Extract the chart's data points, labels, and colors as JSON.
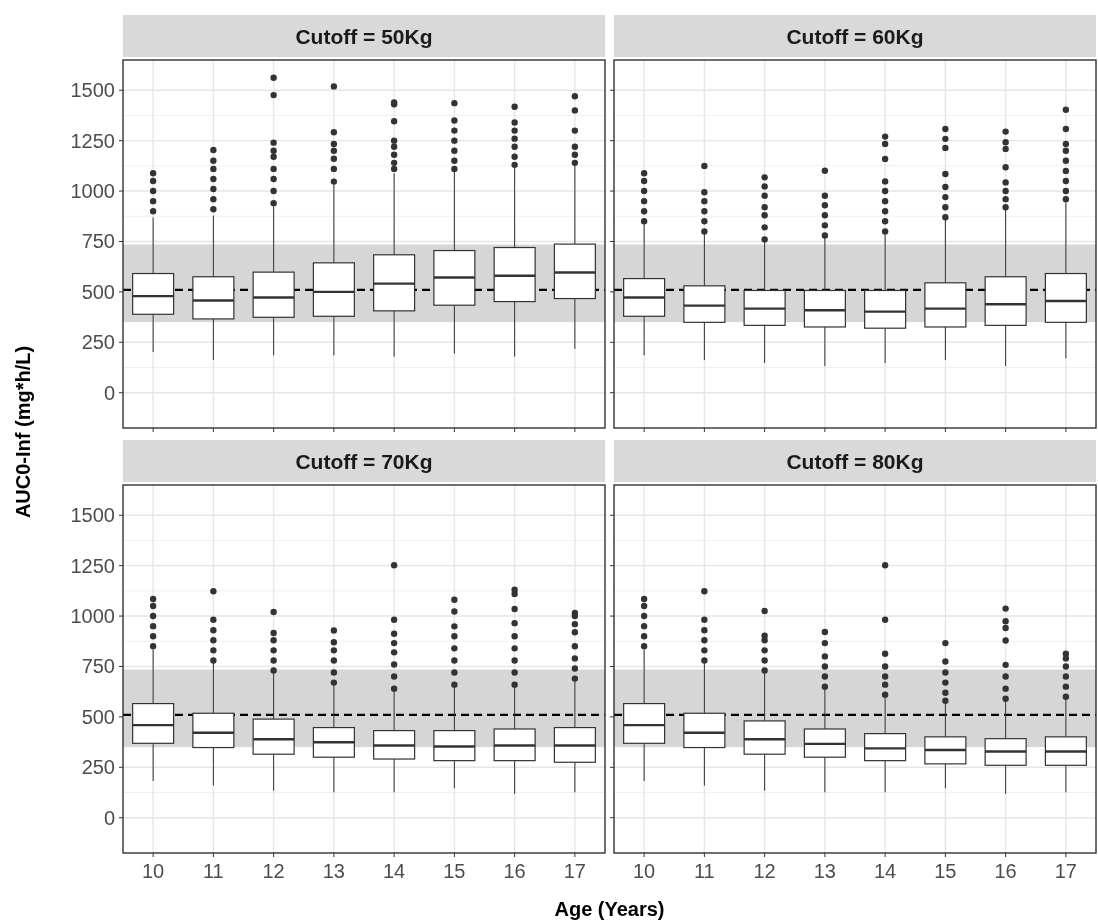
{
  "chart_data": [
    {
      "type": "box",
      "title": "Cutoff = 50Kg",
      "ylabel": "AUC0-Inf (mg*h/L)",
      "categories": [
        "10",
        "11",
        "12",
        "13",
        "14",
        "15",
        "16",
        "17"
      ],
      "ylim": [
        -175,
        1650
      ],
      "yticks": [
        0,
        250,
        500,
        750,
        1000,
        1250,
        1500
      ],
      "grid": true,
      "tick_labels": "y",
      "color": "#333333",
      "ref_lines": [
        {
          "axis": "y",
          "value": 510,
          "line_style": "dashed",
          "color": "#000000"
        }
      ],
      "bands": [
        {
          "axis": "y",
          "from": 350,
          "to": 735,
          "color": "#d6d6d6"
        }
      ],
      "boxes": [
        {
          "low": 202,
          "q1": 389,
          "median": 479,
          "q3": 591,
          "high": 869,
          "outliers": [
            900,
            950,
            1000,
            1050,
            1088
          ]
        },
        {
          "low": 162,
          "q1": 366,
          "median": 457,
          "q3": 575,
          "high": 878,
          "outliers": [
            910,
            960,
            1010,
            1060,
            1110,
            1150,
            1204
          ]
        },
        {
          "low": 185,
          "q1": 374,
          "median": 472,
          "q3": 598,
          "high": 924,
          "outliers": [
            940,
            1000,
            1060,
            1110,
            1170,
            1200,
            1240,
            1476,
            1562
          ]
        },
        {
          "low": 185,
          "q1": 379,
          "median": 500,
          "q3": 644,
          "high": 1032,
          "outliers": [
            1047,
            1110,
            1160,
            1200,
            1234,
            1292,
            1519
          ]
        },
        {
          "low": 179,
          "q1": 406,
          "median": 541,
          "q3": 684,
          "high": 1088,
          "outliers": [
            1110,
            1140,
            1180,
            1220,
            1250,
            1346,
            1430,
            1440
          ]
        },
        {
          "low": 194,
          "q1": 434,
          "median": 571,
          "q3": 705,
          "high": 1101,
          "outliers": [
            1110,
            1150,
            1200,
            1250,
            1300,
            1350,
            1436
          ]
        },
        {
          "low": 179,
          "q1": 452,
          "median": 580,
          "q3": 720,
          "high": 1118,
          "outliers": [
            1130,
            1170,
            1220,
            1260,
            1300,
            1340,
            1418
          ]
        },
        {
          "low": 217,
          "q1": 467,
          "median": 596,
          "q3": 737,
          "high": 1126,
          "outliers": [
            1140,
            1180,
            1220,
            1300,
            1400,
            1470
          ]
        }
      ]
    },
    {
      "type": "box",
      "title": "Cutoff = 60Kg",
      "categories": [
        "10",
        "11",
        "12",
        "13",
        "14",
        "15",
        "16",
        "17"
      ],
      "ylim": [
        -175,
        1650
      ],
      "yticks": [
        0,
        250,
        500,
        750,
        1000,
        1250,
        1500
      ],
      "grid": true,
      "tick_labels": false,
      "color": "#333333",
      "ref_lines": [
        {
          "axis": "y",
          "value": 510,
          "line_style": "dashed",
          "color": "#000000"
        }
      ],
      "bands": [
        {
          "axis": "y",
          "from": 350,
          "to": 735,
          "color": "#d6d6d6"
        }
      ],
      "boxes": [
        {
          "low": 185,
          "q1": 379,
          "median": 472,
          "q3": 566,
          "high": 836,
          "outliers": [
            850,
            900,
            950,
            1000,
            1050,
            1088
          ]
        },
        {
          "low": 162,
          "q1": 349,
          "median": 432,
          "q3": 530,
          "high": 787,
          "outliers": [
            800,
            850,
            900,
            950,
            994,
            1124
          ]
        },
        {
          "low": 147,
          "q1": 334,
          "median": 417,
          "q3": 507,
          "high": 745,
          "outliers": [
            760,
            820,
            880,
            920,
            977,
            1023,
            1068
          ]
        },
        {
          "low": 132,
          "q1": 326,
          "median": 409,
          "q3": 507,
          "high": 770,
          "outliers": [
            780,
            830,
            880,
            930,
            977,
            1101
          ]
        },
        {
          "low": 147,
          "q1": 320,
          "median": 402,
          "q3": 507,
          "high": 787,
          "outliers": [
            800,
            850,
            900,
            950,
            1000,
            1048,
            1159,
            1234,
            1270
          ]
        },
        {
          "low": 162,
          "q1": 326,
          "median": 417,
          "q3": 545,
          "high": 856,
          "outliers": [
            870,
            920,
            970,
            1020,
            1085,
            1214,
            1259,
            1308
          ]
        },
        {
          "low": 132,
          "q1": 334,
          "median": 439,
          "q3": 575,
          "high": 906,
          "outliers": [
            920,
            960,
            1000,
            1043,
            1118,
            1209,
            1242,
            1295
          ]
        },
        {
          "low": 171,
          "q1": 349,
          "median": 455,
          "q3": 591,
          "high": 944,
          "outliers": [
            960,
            1000,
            1050,
            1100,
            1150,
            1200,
            1234,
            1308,
            1403
          ]
        }
      ]
    },
    {
      "type": "box",
      "title": "Cutoff = 70Kg",
      "xlabel": "Age (Years)",
      "categories": [
        "10",
        "11",
        "12",
        "13",
        "14",
        "15",
        "16",
        "17"
      ],
      "ylim": [
        -175,
        1650
      ],
      "yticks": [
        0,
        250,
        500,
        750,
        1000,
        1250,
        1500
      ],
      "grid": true,
      "color": "#333333",
      "ref_lines": [
        {
          "axis": "y",
          "value": 510,
          "line_style": "dashed",
          "color": "#000000"
        }
      ],
      "bands": [
        {
          "axis": "y",
          "from": 350,
          "to": 735,
          "color": "#d6d6d6"
        }
      ],
      "boxes": [
        {
          "low": 182,
          "q1": 369,
          "median": 459,
          "q3": 566,
          "high": 833,
          "outliers": [
            850,
            900,
            950,
            1000,
            1050,
            1085
          ]
        },
        {
          "low": 159,
          "q1": 348,
          "median": 421,
          "q3": 518,
          "high": 767,
          "outliers": [
            780,
            830,
            880,
            930,
            982,
            1123
          ]
        },
        {
          "low": 134,
          "q1": 315,
          "median": 389,
          "q3": 489,
          "high": 717,
          "outliers": [
            730,
            780,
            830,
            880,
            916,
            1020
          ]
        },
        {
          "low": 126,
          "q1": 300,
          "median": 374,
          "q3": 447,
          "high": 659,
          "outliers": [
            670,
            720,
            780,
            830,
            870,
            929
          ]
        },
        {
          "low": 126,
          "q1": 291,
          "median": 358,
          "q3": 432,
          "high": 626,
          "outliers": [
            640,
            700,
            760,
            820,
            866,
            912,
            982,
            1252
          ]
        },
        {
          "low": 146,
          "q1": 283,
          "median": 353,
          "q3": 432,
          "high": 647,
          "outliers": [
            660,
            720,
            780,
            840,
            900,
            949,
            1023,
            1081
          ]
        },
        {
          "low": 118,
          "q1": 283,
          "median": 358,
          "q3": 440,
          "high": 647,
          "outliers": [
            660,
            720,
            780,
            840,
            900,
            965,
            1035,
            1110,
            1131
          ]
        },
        {
          "low": 126,
          "q1": 275,
          "median": 358,
          "q3": 447,
          "high": 681,
          "outliers": [
            690,
            740,
            790,
            850,
            920,
            960,
            1000,
            1015
          ]
        }
      ]
    },
    {
      "type": "box",
      "title": "Cutoff = 80Kg",
      "categories": [
        "10",
        "11",
        "12",
        "13",
        "14",
        "15",
        "16",
        "17"
      ],
      "ylim": [
        -175,
        1650
      ],
      "yticks": [
        0,
        250,
        500,
        750,
        1000,
        1250,
        1500
      ],
      "grid": true,
      "tick_labels": "x",
      "color": "#333333",
      "ref_lines": [
        {
          "axis": "y",
          "value": 510,
          "line_style": "dashed",
          "color": "#000000"
        }
      ],
      "bands": [
        {
          "axis": "y",
          "from": 350,
          "to": 735,
          "color": "#d6d6d6"
        }
      ],
      "boxes": [
        {
          "low": 182,
          "q1": 369,
          "median": 459,
          "q3": 566,
          "high": 833,
          "outliers": [
            850,
            900,
            950,
            1000,
            1050,
            1085
          ]
        },
        {
          "low": 159,
          "q1": 348,
          "median": 421,
          "q3": 518,
          "high": 767,
          "outliers": [
            780,
            830,
            880,
            930,
            982,
            1123
          ]
        },
        {
          "low": 134,
          "q1": 315,
          "median": 389,
          "q3": 480,
          "high": 717,
          "outliers": [
            730,
            780,
            830,
            880,
            903,
            1025
          ]
        },
        {
          "low": 126,
          "q1": 300,
          "median": 366,
          "q3": 440,
          "high": 639,
          "outliers": [
            650,
            700,
            750,
            800,
            866,
            921
          ]
        },
        {
          "low": 126,
          "q1": 283,
          "median": 344,
          "q3": 417,
          "high": 593,
          "outliers": [
            610,
            660,
            700,
            750,
            813,
            982,
            1252
          ]
        },
        {
          "low": 146,
          "q1": 267,
          "median": 336,
          "q3": 401,
          "high": 571,
          "outliers": [
            580,
            620,
            670,
            720,
            775,
            866
          ]
        },
        {
          "low": 118,
          "q1": 260,
          "median": 328,
          "q3": 392,
          "high": 580,
          "outliers": [
            590,
            640,
            700,
            758,
            879,
            941,
            974,
            1037
          ]
        },
        {
          "low": 126,
          "q1": 260,
          "median": 328,
          "q3": 401,
          "high": 593,
          "outliers": [
            600,
            650,
            700,
            750,
            790,
            813
          ]
        }
      ]
    }
  ]
}
